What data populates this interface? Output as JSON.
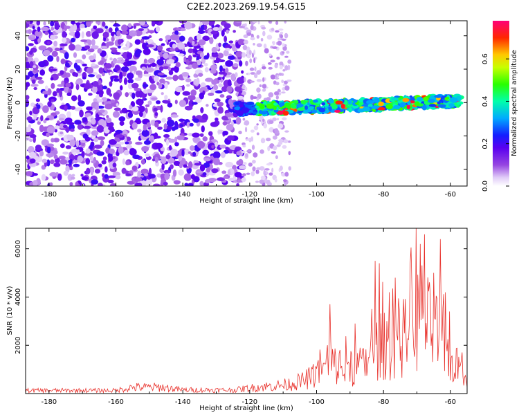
{
  "figure_title": "C2E2.2023.269.19.54.G15",
  "chart_data": [
    {
      "type": "heatmap",
      "xlabel": "Height of straight line (km)",
      "ylabel": "Frequency (Hz)",
      "xlim": [
        -187,
        -55
      ],
      "ylim": [
        -50,
        49
      ],
      "x_ticks": [
        -180,
        -160,
        -140,
        -120,
        -100,
        -80,
        -60
      ],
      "y_ticks": [
        -40,
        -20,
        0,
        20,
        40
      ],
      "colorbar": {
        "label": "Normalized spectral amplitude",
        "range": [
          0,
          0.78
        ],
        "ticks": [
          0.0,
          0.2,
          0.4,
          0.6
        ],
        "tick_labels": [
          "0.0",
          "0.2",
          "0.4",
          "0.6"
        ]
      },
      "features": [
        {
          "kind": "noise",
          "x": [
            -187,
            -122
          ],
          "y": [
            -50,
            49
          ],
          "amplitude": 0.06
        },
        {
          "kind": "noise",
          "x": [
            -122,
            -108
          ],
          "y": [
            -50,
            49
          ],
          "amplitude": 0.02
        },
        {
          "kind": "band",
          "x": [
            -124,
            -57
          ],
          "center_hz": [
            -4,
            1
          ],
          "width_hz": 7,
          "amplitude": [
            0.25,
            0.78
          ]
        }
      ]
    },
    {
      "type": "line",
      "xlabel": "Height of straight line (km)",
      "ylabel": "SNR (10 * v/v)",
      "xlim": [
        -187,
        -55
      ],
      "ylim": [
        0,
        6850
      ],
      "x_ticks": [
        -180,
        -160,
        -140,
        -120,
        -100,
        -80,
        -60
      ],
      "y_ticks": [
        2000,
        4000,
        6000
      ],
      "color": "#e8302a",
      "x_step": 0.25,
      "envelope": [
        {
          "x": -187,
          "y": 220
        },
        {
          "x": -160,
          "y": 220
        },
        {
          "x": -155,
          "y": 450
        },
        {
          "x": -146,
          "y": 450
        },
        {
          "x": -140,
          "y": 260
        },
        {
          "x": -125,
          "y": 250
        },
        {
          "x": -118,
          "y": 450
        },
        {
          "x": -110,
          "y": 600
        },
        {
          "x": -104,
          "y": 900
        },
        {
          "x": -100,
          "y": 1400
        },
        {
          "x": -96,
          "y": 2200
        },
        {
          "x": -92,
          "y": 1700
        },
        {
          "x": -86,
          "y": 2000
        },
        {
          "x": -82,
          "y": 3300
        },
        {
          "x": -78,
          "y": 3500
        },
        {
          "x": -72,
          "y": 4200
        },
        {
          "x": -69,
          "y": 5800
        },
        {
          "x": -66,
          "y": 4600
        },
        {
          "x": -63,
          "y": 4000
        },
        {
          "x": -60,
          "y": 2200
        },
        {
          "x": -55,
          "y": 1500
        }
      ],
      "peaks": [
        {
          "x": -96.1,
          "y": 3700
        },
        {
          "x": -88.5,
          "y": 2900
        },
        {
          "x": -82.6,
          "y": 5500
        },
        {
          "x": -81.2,
          "y": 5400
        },
        {
          "x": -78.3,
          "y": 4200
        },
        {
          "x": -76.4,
          "y": 4800
        },
        {
          "x": -72.1,
          "y": 5400
        },
        {
          "x": -70.2,
          "y": 6850
        },
        {
          "x": -69.0,
          "y": 6200
        },
        {
          "x": -67.7,
          "y": 6600
        },
        {
          "x": -65.1,
          "y": 5000
        },
        {
          "x": -63.1,
          "y": 6400
        },
        {
          "x": -60.2,
          "y": 3400
        }
      ]
    }
  ]
}
